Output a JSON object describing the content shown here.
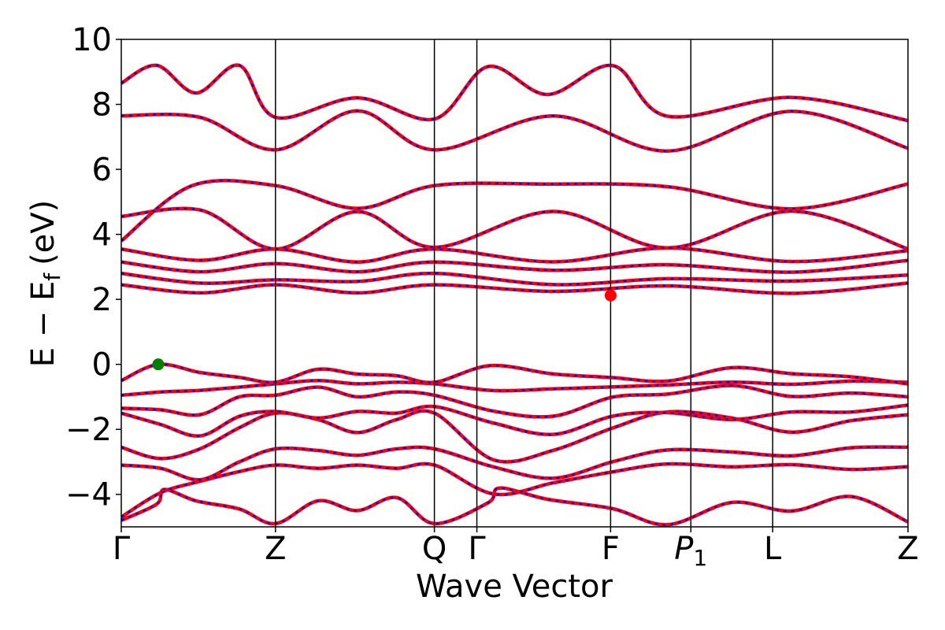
{
  "chart_data": {
    "type": "line",
    "title": "",
    "xlabel": "Wave Vector",
    "ylabel_main": "E − E",
    "ylabel_sub": "f",
    "ylabel_unit": "(eV)",
    "ylim": [
      -5,
      10
    ],
    "y_ticks": [
      -4,
      -2,
      0,
      2,
      4,
      6,
      8,
      10
    ],
    "y_tick_labels": [
      "−4",
      "−2",
      "0",
      "2",
      "4",
      "6",
      "8",
      "10"
    ],
    "kpath": [
      {
        "label": "Γ",
        "sub": "",
        "k": 0.0
      },
      {
        "label": "Z",
        "sub": "",
        "k": 1.96
      },
      {
        "label": "Q",
        "sub": "",
        "k": 3.98
      },
      {
        "label": "Γ",
        "sub": "",
        "k": 4.52
      },
      {
        "label": "F",
        "sub": "",
        "k": 6.22
      },
      {
        "label": "P",
        "sub": "1",
        "k": 7.24
      },
      {
        "label": "L",
        "sub": "",
        "k": 8.28
      },
      {
        "label": "Z",
        "sub": "",
        "k": 10.0
      }
    ],
    "grid": false,
    "legend": "none",
    "colors": {
      "series_a": "#ff0000",
      "series_b": "#0000ff",
      "vbm": "#008000",
      "cbm": "#ff0000"
    },
    "markers": [
      {
        "role": "valence-band-maximum",
        "k": 0.47,
        "e": 0.0,
        "color": "#008000"
      },
      {
        "role": "conduction-band-minimum",
        "k": 6.22,
        "e": 2.12,
        "color": "#ff0000"
      }
    ],
    "series": [
      {
        "style": "solid red / dashed blue overlay",
        "points": [
          [
            0,
            -4.8
          ],
          [
            0.45,
            -4.3
          ],
          [
            0.55,
            -3.85
          ],
          [
            0.95,
            -4.2
          ],
          [
            1.5,
            -4.45
          ],
          [
            1.96,
            -4.9
          ],
          [
            2.5,
            -4.2
          ],
          [
            3.0,
            -4.5
          ],
          [
            3.5,
            -4.1
          ],
          [
            3.98,
            -4.9
          ]
        ]
      },
      {
        "points": [
          [
            0,
            -4.7
          ],
          [
            0.5,
            -3.95
          ],
          [
            1.0,
            -3.6
          ],
          [
            1.5,
            -3.3
          ],
          [
            1.96,
            -3.1
          ],
          [
            2.5,
            -3.2
          ],
          [
            3.0,
            -3.1
          ],
          [
            3.5,
            -3.2
          ],
          [
            3.98,
            -3.1
          ]
        ]
      },
      {
        "points": [
          [
            0,
            -3.1
          ],
          [
            0.5,
            -3.2
          ],
          [
            1.0,
            -3.55
          ],
          [
            1.5,
            -3.0
          ],
          [
            1.96,
            -2.6
          ],
          [
            2.5,
            -2.65
          ],
          [
            3.0,
            -2.8
          ],
          [
            3.5,
            -2.6
          ],
          [
            3.98,
            -2.6
          ]
        ]
      },
      {
        "points": [
          [
            0,
            -2.55
          ],
          [
            0.5,
            -2.9
          ],
          [
            1.0,
            -2.6
          ],
          [
            1.5,
            -1.95
          ],
          [
            1.96,
            -1.5
          ],
          [
            2.5,
            -1.7
          ],
          [
            3.0,
            -2.1
          ],
          [
            3.5,
            -1.7
          ],
          [
            3.98,
            -1.5
          ]
        ]
      },
      {
        "points": [
          [
            0,
            -1.5
          ],
          [
            0.5,
            -1.85
          ],
          [
            1.0,
            -2.2
          ],
          [
            1.5,
            -1.6
          ],
          [
            1.96,
            -1.45
          ],
          [
            2.5,
            -1.65
          ],
          [
            3.0,
            -1.45
          ],
          [
            3.5,
            -1.5
          ],
          [
            3.98,
            -1.3
          ]
        ]
      },
      {
        "points": [
          [
            0,
            -1.35
          ],
          [
            0.5,
            -1.4
          ],
          [
            1.0,
            -1.55
          ],
          [
            1.5,
            -1.0
          ],
          [
            1.96,
            -0.95
          ],
          [
            2.5,
            -0.7
          ],
          [
            3.0,
            -1.0
          ],
          [
            3.5,
            -0.85
          ],
          [
            3.98,
            -0.95
          ]
        ]
      },
      {
        "points": [
          [
            0,
            -0.95
          ],
          [
            0.5,
            -0.85
          ],
          [
            1.0,
            -0.8
          ],
          [
            1.5,
            -0.7
          ],
          [
            1.96,
            -0.6
          ],
          [
            2.5,
            -0.5
          ],
          [
            3.0,
            -0.6
          ],
          [
            3.5,
            -0.55
          ],
          [
            3.98,
            -0.6
          ]
        ]
      },
      {
        "points": [
          [
            0,
            -0.5
          ],
          [
            0.47,
            0.0
          ],
          [
            1.0,
            -0.25
          ],
          [
            1.5,
            -0.4
          ],
          [
            1.96,
            -0.55
          ],
          [
            2.5,
            -0.15
          ],
          [
            3.0,
            -0.3
          ],
          [
            3.5,
            -0.35
          ],
          [
            3.98,
            -0.55
          ]
        ]
      },
      {
        "points": [
          [
            0,
            2.45
          ],
          [
            1.0,
            2.2
          ],
          [
            1.96,
            2.45
          ],
          [
            3.0,
            2.2
          ],
          [
            3.98,
            2.45
          ]
        ]
      },
      {
        "points": [
          [
            0,
            2.8
          ],
          [
            1.0,
            2.5
          ],
          [
            1.96,
            2.6
          ],
          [
            3.0,
            2.55
          ],
          [
            3.98,
            2.8
          ]
        ]
      },
      {
        "points": [
          [
            0,
            3.15
          ],
          [
            1.0,
            2.85
          ],
          [
            1.96,
            3.1
          ],
          [
            3.0,
            2.85
          ],
          [
            3.98,
            3.15
          ]
        ]
      },
      {
        "points": [
          [
            0,
            3.55
          ],
          [
            1.0,
            3.2
          ],
          [
            1.96,
            3.55
          ],
          [
            3.0,
            3.15
          ],
          [
            3.98,
            3.55
          ]
        ]
      },
      {
        "points": [
          [
            0,
            3.8
          ],
          [
            0.9,
            5.5
          ],
          [
            1.96,
            5.5
          ],
          [
            3.0,
            4.8
          ],
          [
            3.98,
            5.5
          ]
        ]
      },
      {
        "points": [
          [
            0,
            4.55
          ],
          [
            1.0,
            4.75
          ],
          [
            1.96,
            3.55
          ],
          [
            3.0,
            4.7
          ],
          [
            3.98,
            3.6
          ]
        ]
      },
      {
        "points": [
          [
            0,
            7.65
          ],
          [
            1.0,
            7.6
          ],
          [
            1.96,
            6.6
          ],
          [
            3.0,
            7.8
          ],
          [
            3.98,
            6.6
          ]
        ]
      },
      {
        "points": [
          [
            0,
            8.65
          ],
          [
            0.45,
            9.2
          ],
          [
            0.95,
            8.35
          ],
          [
            1.5,
            9.2
          ],
          [
            1.96,
            7.6
          ],
          [
            3.0,
            8.2
          ],
          [
            3.98,
            7.55
          ]
        ]
      }
    ]
  }
}
